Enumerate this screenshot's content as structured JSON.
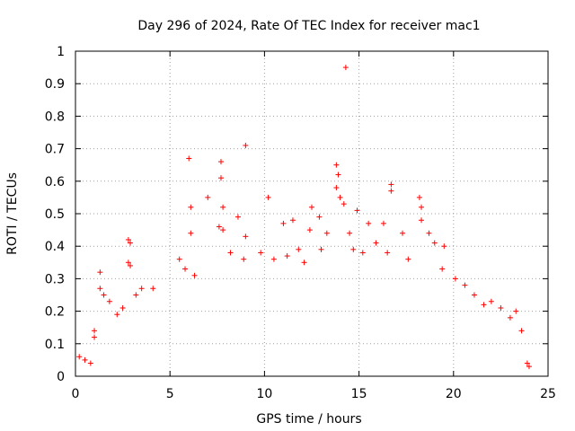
{
  "chart_data": {
    "type": "scatter",
    "title": "Day 296 of 2024, Rate Of TEC Index for receiver mac1",
    "xlabel": "GPS time / hours",
    "ylabel": "ROTI / TECUs",
    "xlim": [
      0,
      25
    ],
    "ylim": [
      0,
      1
    ],
    "x_ticks": [
      0,
      5,
      10,
      15,
      20,
      25
    ],
    "y_ticks": [
      0,
      0.1,
      0.2,
      0.3,
      0.4,
      0.5,
      0.6,
      0.7,
      0.8,
      0.9,
      1
    ],
    "x_tick_labels": [
      "0",
      "5",
      "10",
      "15",
      "20",
      "25"
    ],
    "y_tick_labels": [
      "0",
      "0.1",
      "0.2",
      "0.3",
      "0.4",
      "0.5",
      "0.6",
      "0.7",
      "0.8",
      "0.9",
      "1"
    ],
    "grid": true,
    "marker": "+",
    "series": [
      {
        "name": "ROTI",
        "color": "#ff0000",
        "points": [
          [
            14.3,
            0.95
          ],
          [
            9.0,
            0.71
          ],
          [
            6.0,
            0.67
          ],
          [
            7.7,
            0.66
          ],
          [
            7.7,
            0.61
          ],
          [
            13.8,
            0.65
          ],
          [
            13.9,
            0.62
          ],
          [
            13.8,
            0.58
          ],
          [
            16.7,
            0.59
          ],
          [
            16.7,
            0.57
          ],
          [
            10.2,
            0.55
          ],
          [
            7.0,
            0.55
          ],
          [
            14.0,
            0.55
          ],
          [
            18.2,
            0.55
          ],
          [
            18.3,
            0.52
          ],
          [
            6.1,
            0.52
          ],
          [
            7.8,
            0.52
          ],
          [
            12.5,
            0.52
          ],
          [
            14.2,
            0.53
          ],
          [
            14.9,
            0.51
          ],
          [
            8.6,
            0.49
          ],
          [
            15.5,
            0.47
          ],
          [
            16.3,
            0.47
          ],
          [
            18.3,
            0.48
          ],
          [
            11.5,
            0.48
          ],
          [
            11.0,
            0.47
          ],
          [
            12.9,
            0.49
          ],
          [
            7.6,
            0.46
          ],
          [
            7.8,
            0.45
          ],
          [
            6.1,
            0.44
          ],
          [
            9.0,
            0.43
          ],
          [
            12.4,
            0.45
          ],
          [
            13.3,
            0.44
          ],
          [
            14.5,
            0.44
          ],
          [
            17.3,
            0.44
          ],
          [
            18.7,
            0.44
          ],
          [
            19.0,
            0.41
          ],
          [
            19.5,
            0.4
          ],
          [
            2.8,
            0.42
          ],
          [
            2.9,
            0.41
          ],
          [
            2.8,
            0.35
          ],
          [
            2.9,
            0.34
          ],
          [
            1.3,
            0.32
          ],
          [
            1.3,
            0.27
          ],
          [
            1.5,
            0.25
          ],
          [
            1.8,
            0.23
          ],
          [
            3.5,
            0.27
          ],
          [
            4.1,
            0.27
          ],
          [
            3.2,
            0.25
          ],
          [
            2.5,
            0.21
          ],
          [
            2.2,
            0.19
          ],
          [
            5.5,
            0.36
          ],
          [
            5.8,
            0.33
          ],
          [
            6.3,
            0.31
          ],
          [
            8.2,
            0.38
          ],
          [
            8.9,
            0.36
          ],
          [
            9.8,
            0.38
          ],
          [
            10.5,
            0.36
          ],
          [
            11.2,
            0.37
          ],
          [
            11.8,
            0.39
          ],
          [
            12.1,
            0.35
          ],
          [
            13.0,
            0.39
          ],
          [
            14.7,
            0.39
          ],
          [
            15.2,
            0.38
          ],
          [
            15.9,
            0.41
          ],
          [
            16.5,
            0.38
          ],
          [
            17.6,
            0.36
          ],
          [
            19.4,
            0.33
          ],
          [
            20.1,
            0.3
          ],
          [
            20.6,
            0.28
          ],
          [
            21.1,
            0.25
          ],
          [
            22.0,
            0.23
          ],
          [
            22.5,
            0.21
          ],
          [
            23.0,
            0.18
          ],
          [
            23.3,
            0.2
          ],
          [
            23.6,
            0.14
          ],
          [
            21.6,
            0.22
          ],
          [
            0.2,
            0.06
          ],
          [
            0.5,
            0.05
          ],
          [
            0.8,
            0.04
          ],
          [
            1.0,
            0.12
          ],
          [
            1.0,
            0.14
          ],
          [
            23.9,
            0.04
          ],
          [
            24.0,
            0.03
          ]
        ]
      }
    ]
  }
}
